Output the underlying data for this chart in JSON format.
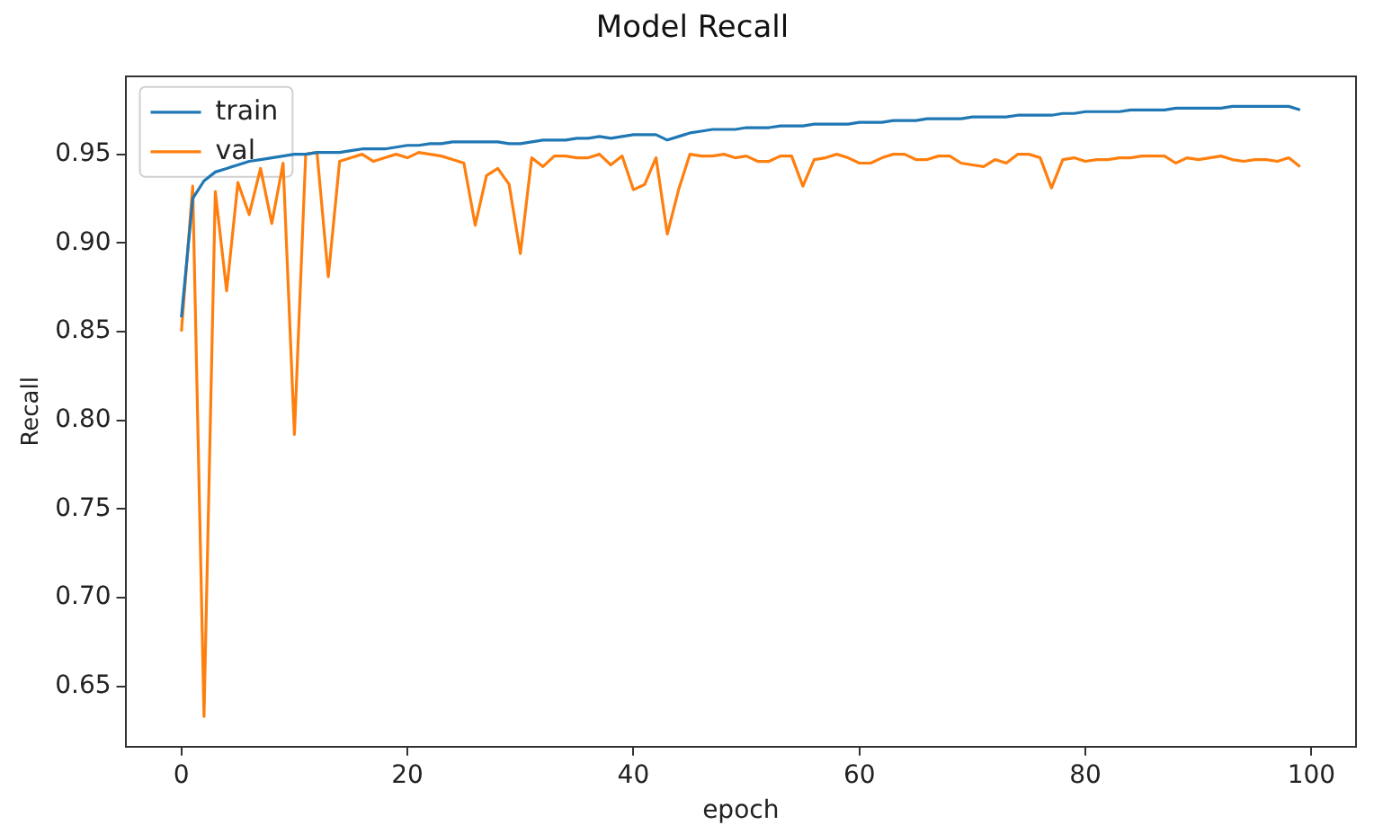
{
  "chart_data": {
    "type": "line",
    "title": "Model Recall",
    "xlabel": "epoch",
    "ylabel": "Recall",
    "x": [
      0,
      1,
      2,
      3,
      4,
      5,
      6,
      7,
      8,
      9,
      10,
      11,
      12,
      13,
      14,
      15,
      16,
      17,
      18,
      19,
      20,
      21,
      22,
      23,
      24,
      25,
      26,
      27,
      28,
      29,
      30,
      31,
      32,
      33,
      34,
      35,
      36,
      37,
      38,
      39,
      40,
      41,
      42,
      43,
      44,
      45,
      46,
      47,
      48,
      49,
      50,
      51,
      52,
      53,
      54,
      55,
      56,
      57,
      58,
      59,
      60,
      61,
      62,
      63,
      64,
      65,
      66,
      67,
      68,
      69,
      70,
      71,
      72,
      73,
      74,
      75,
      76,
      77,
      78,
      79,
      80,
      81,
      82,
      83,
      84,
      85,
      86,
      87,
      88,
      89,
      90,
      91,
      92,
      93,
      94,
      95,
      96,
      97,
      98,
      99
    ],
    "series": [
      {
        "name": "train",
        "color": "#1f77b4",
        "values": [
          0.858,
          0.925,
          0.935,
          0.94,
          0.942,
          0.944,
          0.946,
          0.947,
          0.948,
          0.949,
          0.95,
          0.95,
          0.951,
          0.951,
          0.951,
          0.952,
          0.953,
          0.953,
          0.953,
          0.954,
          0.955,
          0.955,
          0.956,
          0.956,
          0.957,
          0.957,
          0.957,
          0.957,
          0.957,
          0.956,
          0.956,
          0.957,
          0.958,
          0.958,
          0.958,
          0.959,
          0.959,
          0.96,
          0.959,
          0.96,
          0.961,
          0.961,
          0.961,
          0.958,
          0.96,
          0.962,
          0.963,
          0.964,
          0.964,
          0.964,
          0.965,
          0.965,
          0.965,
          0.966,
          0.966,
          0.966,
          0.967,
          0.967,
          0.967,
          0.967,
          0.968,
          0.968,
          0.968,
          0.969,
          0.969,
          0.969,
          0.97,
          0.97,
          0.97,
          0.97,
          0.971,
          0.971,
          0.971,
          0.971,
          0.972,
          0.972,
          0.972,
          0.972,
          0.973,
          0.973,
          0.974,
          0.974,
          0.974,
          0.974,
          0.975,
          0.975,
          0.975,
          0.975,
          0.976,
          0.976,
          0.976,
          0.976,
          0.976,
          0.977,
          0.977,
          0.977,
          0.977,
          0.977,
          0.977,
          0.975
        ]
      },
      {
        "name": "val",
        "color": "#ff7f0e",
        "values": [
          0.85,
          0.932,
          0.633,
          0.929,
          0.873,
          0.934,
          0.916,
          0.942,
          0.911,
          0.945,
          0.792,
          0.95,
          0.951,
          0.881,
          0.946,
          0.948,
          0.95,
          0.946,
          0.948,
          0.95,
          0.948,
          0.951,
          0.95,
          0.949,
          0.947,
          0.945,
          0.91,
          0.938,
          0.942,
          0.933,
          0.894,
          0.948,
          0.943,
          0.949,
          0.949,
          0.948,
          0.948,
          0.95,
          0.944,
          0.949,
          0.93,
          0.933,
          0.948,
          0.905,
          0.93,
          0.95,
          0.949,
          0.949,
          0.95,
          0.948,
          0.949,
          0.946,
          0.946,
          0.949,
          0.949,
          0.932,
          0.947,
          0.948,
          0.95,
          0.948,
          0.945,
          0.945,
          0.948,
          0.95,
          0.95,
          0.947,
          0.947,
          0.949,
          0.949,
          0.945,
          0.944,
          0.943,
          0.947,
          0.945,
          0.95,
          0.95,
          0.948,
          0.931,
          0.947,
          0.948,
          0.946,
          0.947,
          0.947,
          0.948,
          0.948,
          0.949,
          0.949,
          0.949,
          0.945,
          0.948,
          0.947,
          0.948,
          0.949,
          0.947,
          0.946,
          0.947,
          0.947,
          0.946,
          0.948,
          0.943
        ]
      }
    ],
    "xlim": [
      -4.95,
      103.95
    ],
    "xticks": [
      0,
      20,
      40,
      60,
      80,
      100
    ],
    "ylim": [
      0.616,
      0.994
    ],
    "yticks": [
      0.65,
      {
        "value": 0.7,
        "label": "0.70"
      },
      0.75,
      {
        "value": 0.8,
        "label": "0.80"
      },
      0.85,
      {
        "value": 0.9,
        "label": "0.90"
      },
      0.95
    ],
    "legend": "top left",
    "marker": "none",
    "line_style": "solid",
    "grid": false
  }
}
